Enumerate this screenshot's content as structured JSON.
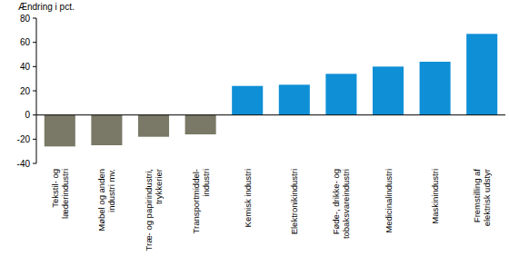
{
  "chart_data": {
    "type": "bar",
    "y_label": "Ændring i pct.",
    "categories": [
      "Tekstil- og læderindustri",
      "Møbel og anden industri mv.",
      "Træ- og papirindustri, trykkerier",
      "Transportmiddel-industri",
      "Kemisk industri",
      "Elektronikindustri",
      "Føde-, drikke- og tobaksvareindustri",
      "Medicinalindustri",
      "Maskinindustri",
      "Fremstilling af elektrisk udstyr"
    ],
    "values": [
      -26,
      -25,
      -18,
      -16,
      24,
      25,
      34,
      40,
      44,
      67
    ],
    "colors": [
      "#7a7866",
      "#7a7866",
      "#7a7866",
      "#7a7866",
      "#0f8fd6",
      "#0f8fd6",
      "#0f8fd6",
      "#0f8fd6",
      "#0f8fd6",
      "#0f8fd6"
    ],
    "ylim": [
      -40,
      80
    ],
    "yticks": [
      -40,
      -20,
      0,
      20,
      40,
      60,
      80
    ],
    "grid": false
  }
}
